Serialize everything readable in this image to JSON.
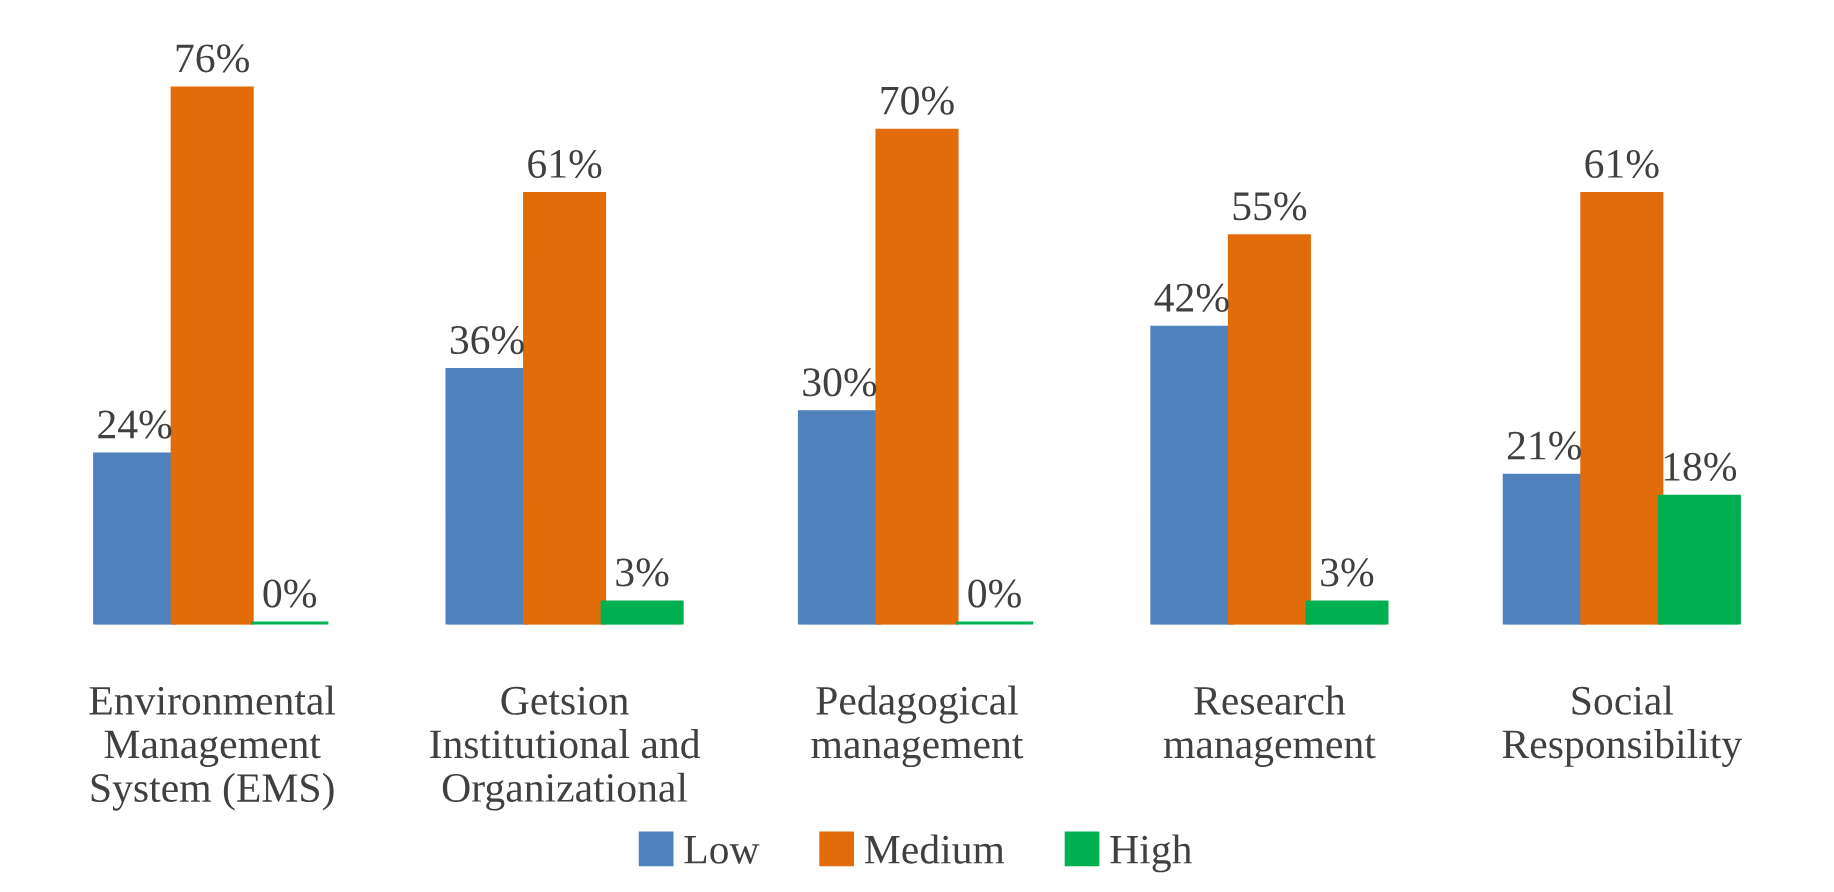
{
  "chart_data": {
    "type": "bar",
    "categories": [
      "Environmental\nManagement\nSystem (EMS)",
      "Getsion\nInstitutional and\nOrganizational",
      "Pedagogical\nmanagement",
      "Research\nmanagement",
      "Social\nResponsibility"
    ],
    "series": [
      {
        "name": "Low",
        "color": "#4f81bd",
        "values": [
          24,
          36,
          30,
          42,
          21
        ],
        "value_labels": [
          "24%",
          "36%",
          "30%",
          "42%",
          "21%"
        ]
      },
      {
        "name": "Medium",
        "color": "#e36c0a",
        "values": [
          76,
          61,
          70,
          55,
          61
        ],
        "value_labels": [
          "76%",
          "61%",
          "70%",
          "55%",
          "61%"
        ]
      },
      {
        "name": "High",
        "color": "#00b050",
        "values": [
          0,
          3,
          0,
          3,
          18
        ],
        "value_labels": [
          "0%",
          "3%",
          "0%",
          "3%",
          "18%"
        ]
      }
    ],
    "legend": "bottom"
  }
}
